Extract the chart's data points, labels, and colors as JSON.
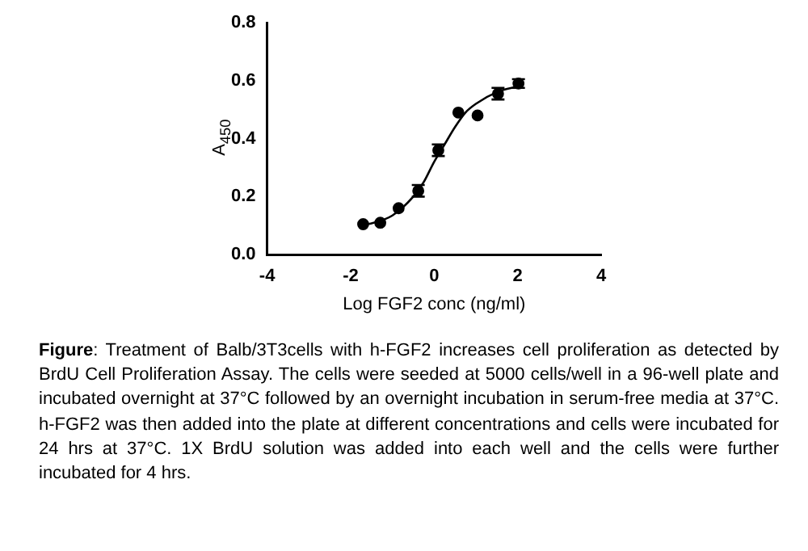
{
  "chart_data": {
    "type": "scatter",
    "xlabel": "Log FGF2 conc (ng/ml)",
    "ylabel": "A$_{450}$",
    "xlim": [
      -4,
      4
    ],
    "xticks": [
      -4,
      -2,
      0,
      2,
      4
    ],
    "ylim": [
      0,
      0.8
    ],
    "yticks": [
      {
        "value": 0,
        "label": "0.0"
      },
      0.2,
      0.4,
      0.6,
      0.8
    ],
    "grid": false,
    "legend": false,
    "marker": "circle",
    "series": [
      {
        "color": "#000000",
        "x": [
          -1.7,
          -1.29,
          -0.85,
          -0.38,
          0.1,
          0.58,
          1.04,
          1.53,
          2.02
        ],
        "values": [
          0.105,
          0.11,
          0.16,
          0.22,
          0.36,
          0.49,
          0.48,
          0.555,
          0.59
        ],
        "errors": [
          null,
          null,
          null,
          0.02,
          0.02,
          null,
          null,
          0.02,
          0.015
        ]
      },
      {
        "type": "line",
        "color": "#000000",
        "marker": "none",
        "x": [
          -1.75,
          -1.5,
          -1.0,
          -0.5,
          -0.25,
          0,
          0.25,
          0.5,
          0.75,
          1.0,
          1.5,
          2.0
        ],
        "values": [
          0.103,
          0.108,
          0.135,
          0.2,
          0.25,
          0.32,
          0.38,
          0.44,
          0.49,
          0.52,
          0.56,
          0.58
        ]
      }
    ],
    "annotations": [
      "Figure: Treatment of Balb/3T3cells with h-FGF2 increases cell proliferation as detected by BrdU Cell Proliferation Assay. The cells were seeded at 5000 cells/well in a 96-well plate and incubated overnight at 37°C followed by an overnight incubation in serum-free media at 37°C. h-FGF2 was then added into the plate at different concentrations and cells were incubated for 24 hrs at 37°C. 1X BrdU solution was added into each well and the cells were further incubated for 4 hrs."
    ]
  }
}
